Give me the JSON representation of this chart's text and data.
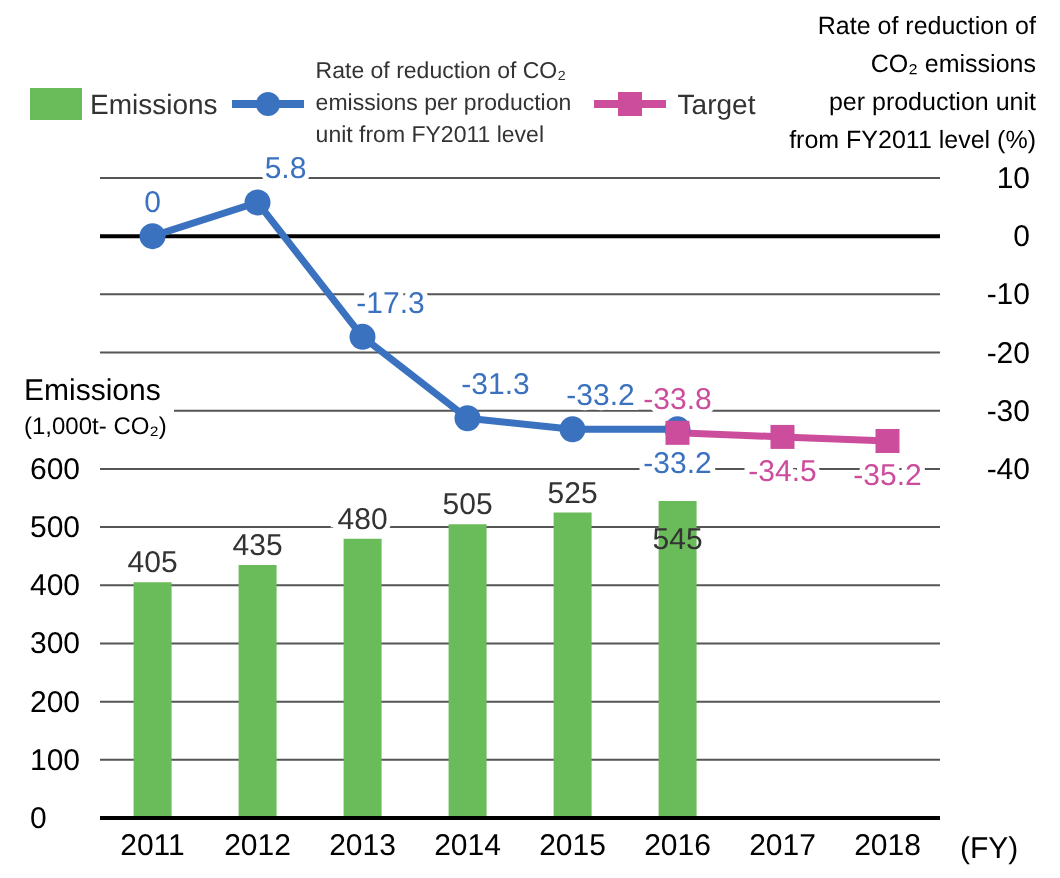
{
  "chart_data": {
    "type": "bar",
    "categories": [
      "2011",
      "2012",
      "2013",
      "2014",
      "2015",
      "2016",
      "2017",
      "2018"
    ],
    "series": [
      {
        "name": "Emissions",
        "color": "#6abb59",
        "values": [
          405,
          435,
          480,
          505,
          525,
          545,
          null,
          null
        ]
      },
      {
        "name": "Rate of reduction of CO₂ emissions per production unit from FY2011 level",
        "type": "line",
        "axis": "y2",
        "marker": "circle",
        "color": "#3a72c0",
        "values": [
          0,
          5.8,
          -17.3,
          -31.3,
          -33.2,
          -33.2,
          null,
          null
        ]
      },
      {
        "name": "Target",
        "type": "line",
        "axis": "y2",
        "marker": "square",
        "color": "#cc4d9c",
        "values": [
          null,
          null,
          null,
          null,
          null,
          -33.8,
          -34.5,
          -35.2
        ]
      }
    ],
    "ylabel": "Emissions\n(1,000t- CO₂)",
    "y2label": "Rate of reduction of\nCO₂ emissions\nper production unit\nfrom FY2011 level (%)",
    "xlabel": "(FY)",
    "ylim": [
      0,
      1100
    ],
    "yticks": [
      0,
      100,
      200,
      300,
      400,
      500,
      600
    ],
    "y2lim": [
      -100,
      10
    ],
    "y2ticks": [
      -40,
      -30,
      -20,
      -10,
      0,
      10
    ],
    "ref_lines": [
      {
        "axis": "y2",
        "value": 0,
        "color": "#000000"
      }
    ],
    "grid": true,
    "legend": "top",
    "data_labels": true
  }
}
